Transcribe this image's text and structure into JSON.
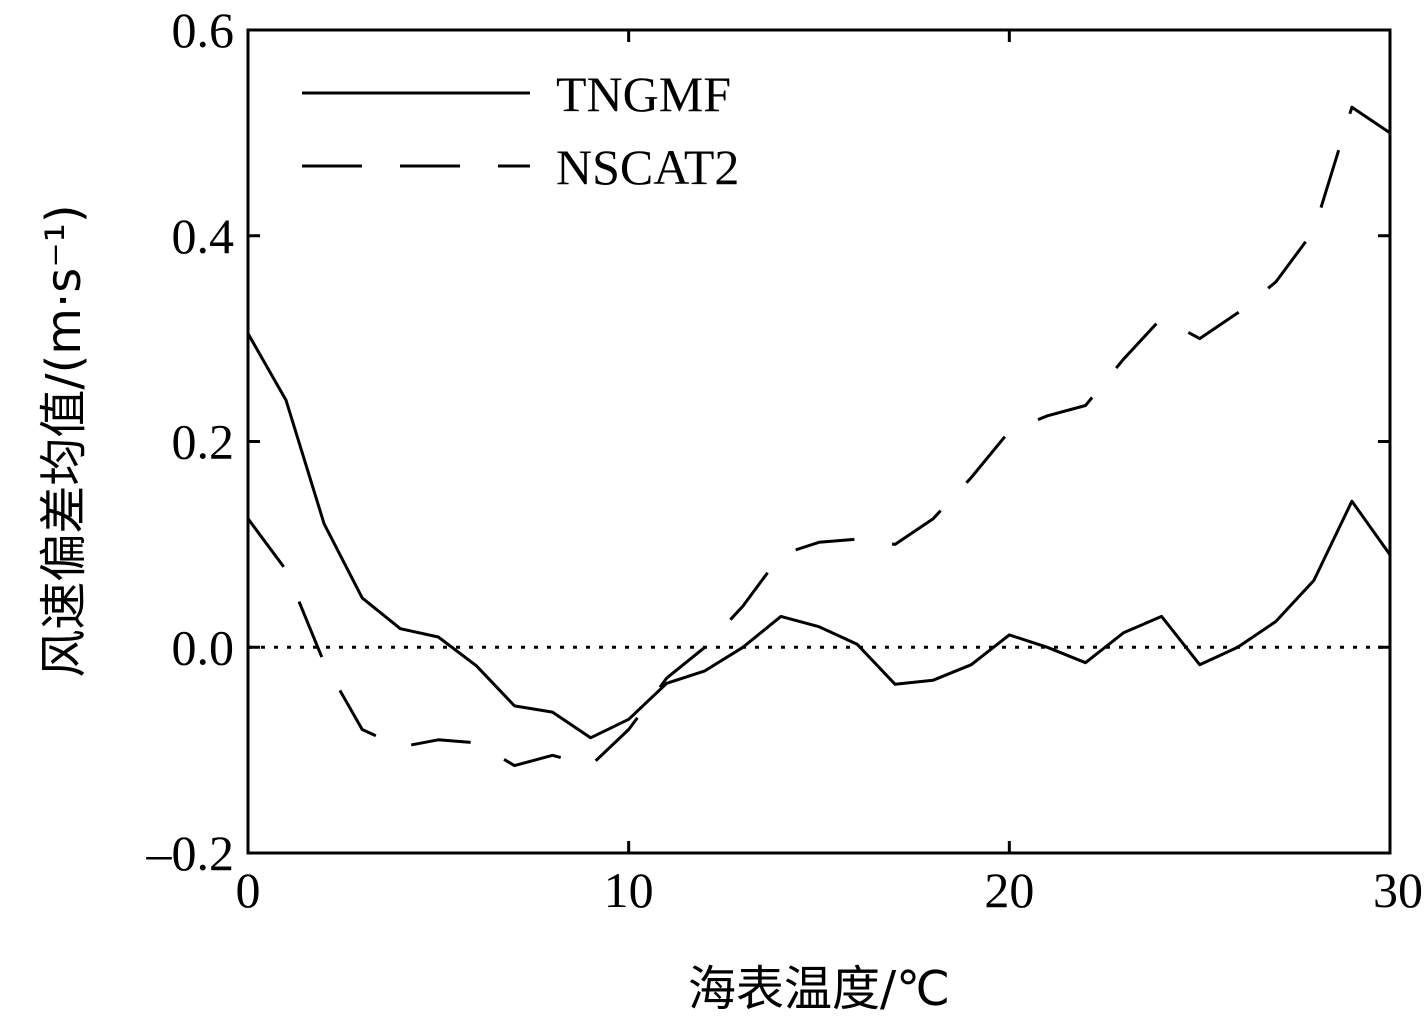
{
  "chart_data": {
    "type": "line",
    "xlabel": "海表温度/℃",
    "ylabel": "风速偏差均值/(m·s⁻¹)",
    "xlim": [
      0,
      30
    ],
    "ylim": [
      -0.2,
      0.6
    ],
    "xticks": [
      0,
      10,
      20,
      30
    ],
    "xtick_labels": [
      "0",
      "10",
      "20",
      "30"
    ],
    "yticks": [
      -0.2,
      0.0,
      0.2,
      0.4,
      0.6
    ],
    "ytick_labels": [
      "–0.2",
      "0.0",
      "0.2",
      "0.4",
      "0.6"
    ],
    "grid": false,
    "legend": {
      "position": "top-left"
    },
    "reference_line": {
      "y": 0.0,
      "style": "dotted"
    },
    "x": [
      0,
      1,
      2,
      3,
      4,
      5,
      6,
      7,
      8,
      9,
      10,
      11,
      12,
      13,
      14,
      15,
      16,
      17,
      18,
      19,
      20,
      21,
      22,
      23,
      24,
      25,
      26,
      27,
      28,
      29,
      30
    ],
    "series": [
      {
        "name": "TNGMF",
        "style": "solid",
        "values": [
          0.305,
          0.24,
          0.12,
          0.048,
          0.018,
          0.01,
          -0.018,
          -0.057,
          -0.063,
          -0.088,
          -0.07,
          -0.035,
          -0.023,
          0.0,
          0.03,
          0.02,
          0.003,
          -0.036,
          -0.032,
          -0.017,
          0.012,
          0.0,
          -0.015,
          0.014,
          0.03,
          -0.017,
          0.0,
          0.025,
          0.065,
          0.142,
          0.09
        ]
      },
      {
        "name": "NSCAT2",
        "style": "dashed",
        "values": [
          0.125,
          0.075,
          -0.015,
          -0.08,
          -0.097,
          -0.09,
          -0.093,
          -0.115,
          -0.105,
          -0.115,
          -0.08,
          -0.03,
          0.0,
          0.04,
          0.09,
          0.102,
          0.105,
          0.1,
          0.125,
          0.165,
          0.21,
          0.225,
          0.235,
          0.28,
          0.32,
          0.3,
          0.325,
          0.355,
          0.405,
          0.525,
          0.5
        ]
      }
    ]
  }
}
